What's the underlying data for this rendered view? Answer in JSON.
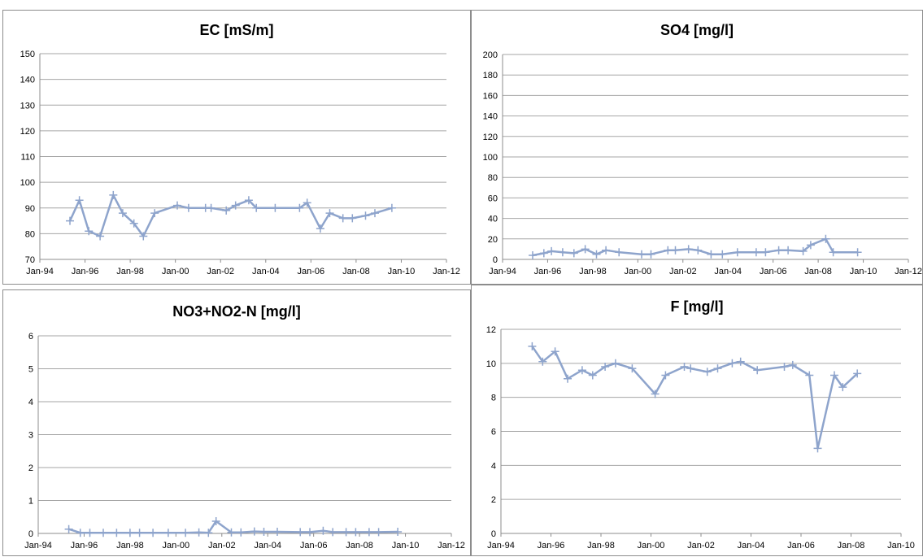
{
  "chart_data": [
    {
      "type": "line",
      "title": "EC [mS/m]",
      "xlabel": "",
      "ylabel": "",
      "x_tick_labels": [
        "Jan-94",
        "Jan-96",
        "Jan-98",
        "Jan-00",
        "Jan-02",
        "Jan-04",
        "Jan-06",
        "Jan-08",
        "Jan-10",
        "Jan-12"
      ],
      "y_tick_labels": [
        "70",
        "80",
        "90",
        "100",
        "110",
        "120",
        "130",
        "140",
        "150"
      ],
      "xlim": [
        "1994-01",
        "2012-01"
      ],
      "ylim": [
        70,
        150
      ],
      "grid": true,
      "color": "#8ea4cc",
      "series": [
        {
          "x": [
            "1995-05",
            "1995-10",
            "1996-03",
            "1996-09",
            "1997-04",
            "1997-09",
            "1998-03",
            "1998-08",
            "1999-02",
            "2000-02",
            "2000-08",
            "2001-05",
            "2001-08",
            "2002-04",
            "2002-09",
            "2003-04",
            "2003-08",
            "2004-06",
            "2005-07",
            "2005-11",
            "2006-06",
            "2006-11",
            "2007-06",
            "2007-11",
            "2008-06",
            "2008-11",
            "2009-08"
          ],
          "y": [
            85,
            93,
            81,
            79,
            95,
            88,
            84,
            79,
            88,
            91,
            90,
            90,
            90,
            89,
            91,
            93,
            90,
            90,
            90,
            92,
            82,
            88,
            86,
            86,
            87,
            88,
            90
          ]
        }
      ]
    },
    {
      "type": "line",
      "title": "SO4 [mg/l]",
      "xlabel": "",
      "ylabel": "",
      "x_tick_labels": [
        "Jan-94",
        "Jan-96",
        "Jan-98",
        "Jan-00",
        "Jan-02",
        "Jan-04",
        "Jan-06",
        "Jan-08",
        "Jan-10",
        "Jan-12"
      ],
      "y_tick_labels": [
        "0",
        "20",
        "40",
        "60",
        "80",
        "100",
        "120",
        "140",
        "160",
        "180",
        "200"
      ],
      "xlim": [
        "1994-01",
        "2012-01"
      ],
      "ylim": [
        0,
        200
      ],
      "grid": true,
      "color": "#8ea4cc",
      "series": [
        {
          "x": [
            "1995-05",
            "1995-11",
            "1996-03",
            "1996-09",
            "1997-03",
            "1997-09",
            "1998-03",
            "1998-08",
            "1999-03",
            "2000-03",
            "2000-08",
            "2001-05",
            "2001-09",
            "2002-04",
            "2002-09",
            "2003-04",
            "2003-10",
            "2004-06",
            "2005-04",
            "2005-09",
            "2006-04",
            "2006-09",
            "2007-05",
            "2007-09",
            "2008-05",
            "2008-09",
            "2009-10"
          ],
          "y": [
            4,
            6,
            8,
            7,
            6,
            10,
            5,
            9,
            7,
            5,
            5,
            9,
            9,
            10,
            9,
            5,
            5,
            7,
            7,
            7,
            9,
            9,
            8,
            14,
            20,
            7,
            7
          ]
        }
      ]
    },
    {
      "type": "line",
      "title": "NO3+NO2-N [mg/l]",
      "xlabel": "",
      "ylabel": "",
      "x_tick_labels": [
        "Jan-94",
        "Jan-96",
        "Jan-98",
        "Jan-00",
        "Jan-02",
        "Jan-04",
        "Jan-06",
        "Jan-08",
        "Jan-10",
        "Jan-12"
      ],
      "y_tick_labels": [
        "0",
        "1",
        "2",
        "3",
        "4",
        "5",
        "6"
      ],
      "xlim": [
        "1994-01",
        "2012-01"
      ],
      "ylim": [
        0,
        6
      ],
      "grid": true,
      "color": "#8ea4cc",
      "series": [
        {
          "x": [
            "1995-05",
            "1995-11",
            "1996-04",
            "1996-11",
            "1997-06",
            "1998-01",
            "1998-06",
            "1999-01",
            "1999-09",
            "2000-06",
            "2001-01",
            "2001-06",
            "2001-10",
            "2002-06",
            "2002-11",
            "2003-06",
            "2003-11",
            "2004-06",
            "2005-06",
            "2005-11",
            "2006-06",
            "2006-11",
            "2007-06",
            "2007-11",
            "2008-06",
            "2008-11",
            "2009-09"
          ],
          "y": [
            0.13,
            0.02,
            0.02,
            0.02,
            0.02,
            0.02,
            0.02,
            0.02,
            0.02,
            0.02,
            0.03,
            0.02,
            0.37,
            0.03,
            0.03,
            0.06,
            0.05,
            0.05,
            0.04,
            0.04,
            0.08,
            0.04,
            0.04,
            0.04,
            0.04,
            0.04,
            0.05
          ]
        }
      ]
    },
    {
      "type": "line",
      "title": "F [mg/l]",
      "xlabel": "",
      "ylabel": "",
      "x_tick_labels": [
        "Jan-94",
        "Jan-96",
        "Jan-98",
        "Jan-00",
        "Jan-02",
        "Jan-04",
        "Jan-06",
        "Jan-08",
        "Jan-10"
      ],
      "y_tick_labels": [
        "0",
        "2",
        "4",
        "6",
        "8",
        "10",
        "12"
      ],
      "xlim": [
        "1994-01",
        "2010-01"
      ],
      "ylim": [
        0,
        12
      ],
      "grid": true,
      "color": "#8ea4cc",
      "series": [
        {
          "x": [
            "1995-04",
            "1995-09",
            "1996-03",
            "1996-09",
            "1997-04",
            "1997-09",
            "1998-03",
            "1998-08",
            "1999-04",
            "2000-03",
            "2000-08",
            "2001-05",
            "2001-08",
            "2002-04",
            "2002-09",
            "2003-04",
            "2003-08",
            "2004-04",
            "2005-05",
            "2005-09",
            "2006-05",
            "2006-09",
            "2007-05",
            "2007-09",
            "2008-04"
          ],
          "y": [
            11,
            10.1,
            10.7,
            9.1,
            9.6,
            9.3,
            9.8,
            10,
            9.7,
            8.2,
            9.3,
            9.8,
            9.7,
            9.5,
            9.7,
            10,
            10.1,
            9.6,
            9.8,
            9.9,
            9.3,
            5,
            9.3,
            8.6,
            9.4
          ]
        }
      ]
    }
  ]
}
